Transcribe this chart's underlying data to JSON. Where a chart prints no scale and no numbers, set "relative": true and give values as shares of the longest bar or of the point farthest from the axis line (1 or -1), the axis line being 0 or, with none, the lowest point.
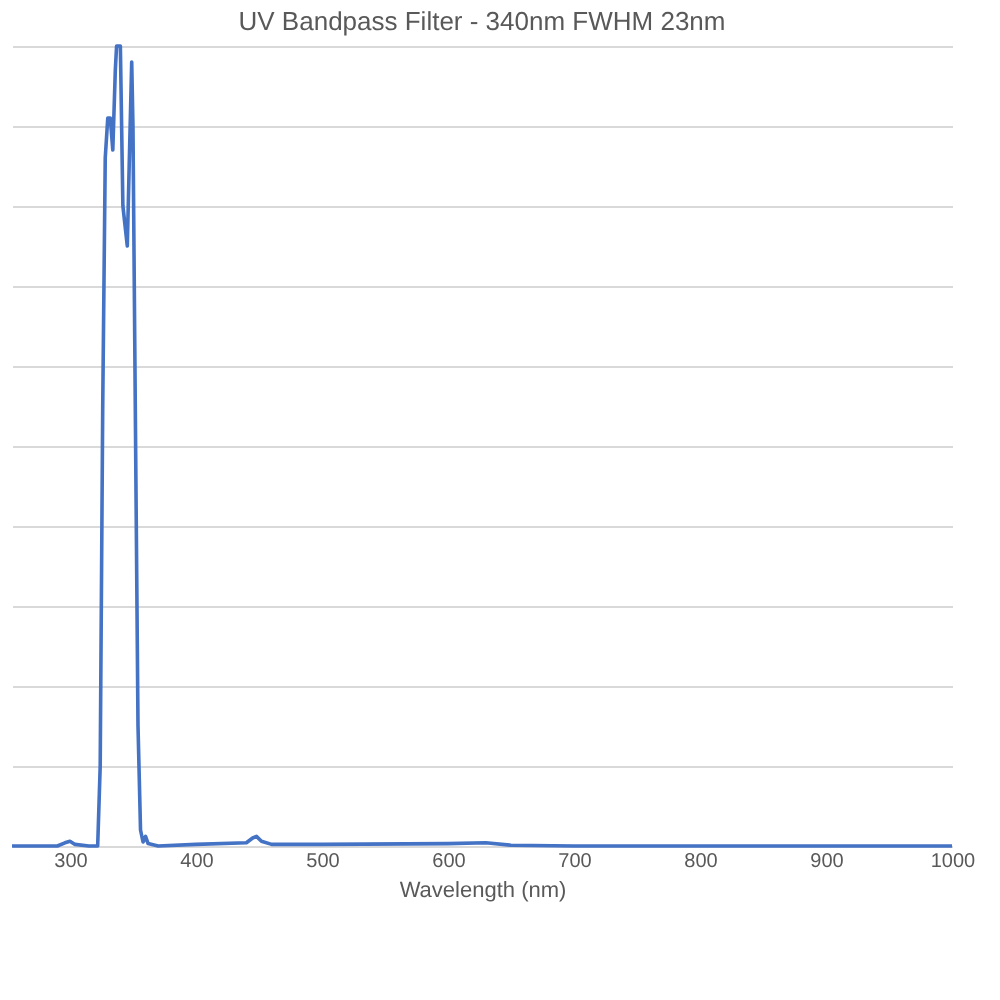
{
  "chart_data": {
    "type": "line",
    "title": "UV Bandpass Filter - 340nm FWHM 23nm",
    "xlabel": "Wavelength (nm)",
    "relative": true,
    "x": [
      254,
      290,
      296,
      300,
      304,
      315,
      322,
      324,
      326,
      328,
      330,
      332,
      334,
      336,
      337,
      340,
      342,
      345.5,
      347,
      349,
      350,
      352,
      354,
      356,
      358,
      360,
      362,
      370,
      400,
      440,
      445,
      448,
      452,
      460,
      500,
      600,
      630,
      650,
      700,
      800,
      900,
      1000
    ],
    "series": [
      {
        "color": "#4472c4",
        "values": [
          0,
          0,
          0.004,
          0.006,
          0.002,
          0,
          0,
          0.1,
          0.55,
          0.86,
          0.91,
          0.91,
          0.87,
          0.97,
          1.0,
          1.0,
          0.8,
          0.75,
          0.85,
          0.98,
          0.9,
          0.52,
          0.15,
          0.02,
          0.005,
          0.012,
          0.003,
          0,
          0.002,
          0.004,
          0.01,
          0.012,
          0.006,
          0.002,
          0.002,
          0.003,
          0.004,
          0.001,
          0,
          0,
          0,
          0
        ]
      }
    ],
    "xlim": [
      254,
      1000
    ],
    "xticks": [
      300,
      400,
      500,
      600,
      700,
      800,
      900,
      1000
    ],
    "grid": "y"
  }
}
